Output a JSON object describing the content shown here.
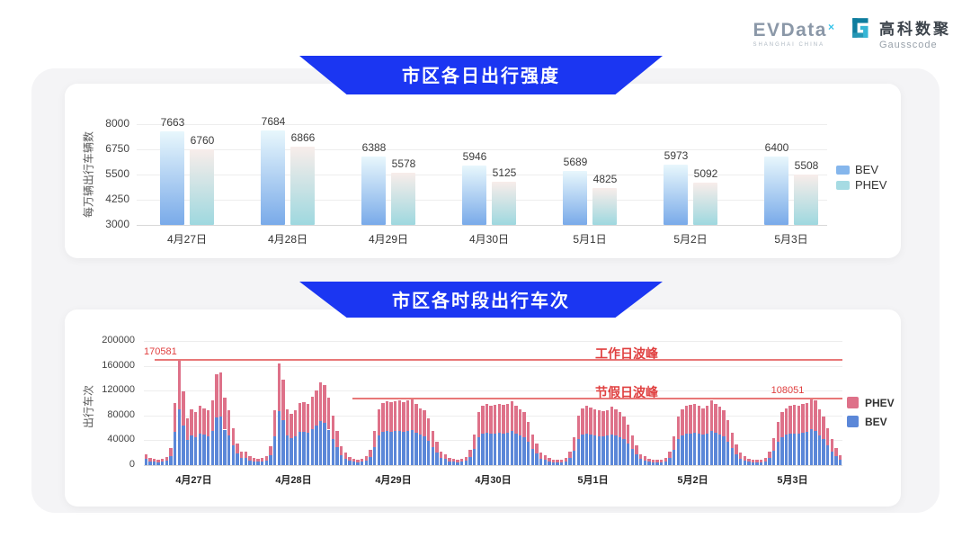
{
  "header": {
    "evdata": {
      "name": "EVData",
      "sup": "×",
      "tagline": "SHANGHAI CHINA"
    },
    "gausscode": {
      "cn": "高科数聚",
      "en": "Gausscode"
    }
  },
  "colors": {
    "banner_blue": "#1b36f2",
    "bev_blue": "#5b87d8",
    "phev_pink": "#de7189",
    "bev_gradient_top": "#e8f7fc",
    "bev_gradient_bottom": "#79aae9",
    "phev_gradient_top": "#f8edea",
    "phev_gradient_bottom": "#9ed8df",
    "bev_legend_swatch": "#85b6ec",
    "phev_legend_swatch": "#a6dbe3",
    "annotation_red": "#e04040",
    "ref_line_red": "#e87878",
    "gridline": "#ededed",
    "axis_line": "#d8d8d8"
  },
  "chart_data": [
    {
      "type": "bar",
      "title": "市区各日出行强度",
      "ylabel": "每万辆出行车辆数",
      "categories": [
        "4月27日",
        "4月28日",
        "4月29日",
        "4月30日",
        "5月1日",
        "5月2日",
        "5月3日"
      ],
      "series": [
        {
          "name": "BEV",
          "values": [
            7663,
            7684,
            6388,
            5946,
            5689,
            5973,
            6400
          ]
        },
        {
          "name": "PHEV",
          "values": [
            6760,
            6866,
            5578,
            5125,
            4825,
            5092,
            5508
          ]
        }
      ],
      "ylim": [
        3000,
        8000
      ],
      "yticks": [
        3000,
        4250,
        5500,
        6750,
        8000
      ],
      "legend": [
        "BEV",
        "PHEV"
      ],
      "legend_position": "right",
      "grid": true,
      "value_labels": true
    },
    {
      "type": "bar-stacked",
      "title": "市区各时段出行车次",
      "ylabel": "出行车次",
      "categories": [
        "4月27日",
        "4月28日",
        "4月29日",
        "4月30日",
        "5月1日",
        "5月2日",
        "5月3日"
      ],
      "hours_per_day": 24,
      "ylim": [
        0,
        200000
      ],
      "yticks": [
        0,
        40000,
        80000,
        120000,
        160000,
        200000
      ],
      "legend": [
        "PHEV",
        "BEV"
      ],
      "legend_position": "right",
      "reference_lines": [
        {
          "name": "workday_peak",
          "value": 170581,
          "label": "工作日波峰",
          "value_label": "170581"
        },
        {
          "name": "holiday_peak",
          "value": 108051,
          "label": "节假日波峰",
          "value_label": "108051"
        }
      ],
      "series": [
        {
          "name": "BEV",
          "day_values": [
            [
              9540,
              6360,
              5300,
              4770,
              5300,
              6890,
              14840,
              53000,
              90408,
              63070,
              40280,
              47700,
              45050,
              50350,
              48760,
              46640,
              55650,
              77380,
              78970,
              57240,
              47170,
              31800,
              18550,
              11660
            ],
            [
              11660,
              7420,
              5830,
              5300,
              5830,
              7950,
              15900,
              46640,
              86920,
              73140,
              47700,
              43990,
              46640,
              53000,
              54060,
              51940,
              58300,
              63600,
              70490,
              68370,
              57240,
              42400,
              29150,
              15900
            ],
            [
              10600,
              6890,
              5300,
              4770,
              5300,
              7420,
              13250,
              29150,
              47700,
              53000,
              54590,
              53530,
              54590,
              55120,
              54060,
              55650,
              56710,
              51940,
              48760,
              46640,
              39750,
              29150,
              20140,
              11660
            ],
            [
              9540,
              6360,
              5300,
              4770,
              5300,
              6890,
              12720,
              26500,
              45050,
              50350,
              51940,
              50880,
              51410,
              52470,
              51410,
              51940,
              54590,
              50350,
              47700,
              45050,
              37100,
              26500,
              18550,
              10600
            ],
            [
              8480,
              5830,
              4770,
              4240,
              4770,
              6360,
              11660,
              23850,
              42400,
              48760,
              50350,
              49290,
              47700,
              46640,
              46110,
              47170,
              49820,
              47700,
              45050,
              41340,
              34450,
              25440,
              16960,
              9540
            ],
            [
              7950,
              5300,
              4770,
              4240,
              4770,
              6360,
              11660,
              24380,
              41340,
              47700,
              50350,
              51410,
              52470,
              50350,
              48760,
              50880,
              55120,
              51940,
              49820,
              46640,
              38160,
              27560,
              18020,
              10600
            ],
            [
              7420,
              5300,
              4240,
              4240,
              4770,
              6360,
              11660,
              23320,
              37100,
              45050,
              48760,
              50350,
              51410,
              50880,
              51940,
              53000,
              57267,
              55120,
              47700,
              41340,
              31800,
              22260,
              14840,
              8480
            ]
          ]
        },
        {
          "name": "PHEV",
          "day_values": [
            [
              8460,
              5640,
              4700,
              4230,
              4700,
              6110,
              13160,
              47000,
              80173,
              55930,
              35720,
              42300,
              39950,
              44650,
              43240,
              41360,
              49350,
              68620,
              70030,
              50760,
              41830,
              28200,
              16450,
              10340
            ],
            [
              10340,
              6580,
              5170,
              4700,
              5170,
              7050,
              14100,
              41360,
              77080,
              64860,
              42300,
              39010,
              41360,
              47000,
              47940,
              46060,
              51700,
              56400,
              62510,
              60630,
              50760,
              37600,
              25850,
              14100
            ],
            [
              9400,
              6110,
              4700,
              4230,
              4700,
              6580,
              11750,
              25850,
              42300,
              47000,
              48410,
              47470,
              48410,
              48880,
              47940,
              49350,
              50290,
              46060,
              43240,
              41360,
              35250,
              25850,
              17860,
              10340
            ],
            [
              8460,
              5640,
              4700,
              4230,
              4700,
              6110,
              11280,
              23500,
              39950,
              44650,
              46060,
              45120,
              45590,
              46530,
              45590,
              46060,
              48410,
              44650,
              42300,
              39950,
              32900,
              23500,
              16450,
              9400
            ],
            [
              7520,
              5170,
              4230,
              3760,
              4230,
              5640,
              10340,
              21150,
              37600,
              43240,
              44650,
              43710,
              42300,
              41360,
              40890,
              41830,
              44180,
              42300,
              39950,
              36660,
              30550,
              22560,
              15040,
              8460
            ],
            [
              7050,
              4700,
              4230,
              3760,
              4230,
              5640,
              10340,
              21620,
              36660,
              42300,
              44650,
              45590,
              46530,
              44650,
              43240,
              45120,
              48880,
              46060,
              44180,
              41360,
              33840,
              24440,
              15980,
              9400
            ],
            [
              6580,
              4700,
              3760,
              3760,
              4230,
              5640,
              10340,
              20680,
              32900,
              39950,
              43240,
              44650,
              45590,
              45120,
              46060,
              47000,
              50784,
              48880,
              42300,
              36660,
              28200,
              19740,
              13160,
              7520
            ]
          ]
        }
      ]
    }
  ]
}
